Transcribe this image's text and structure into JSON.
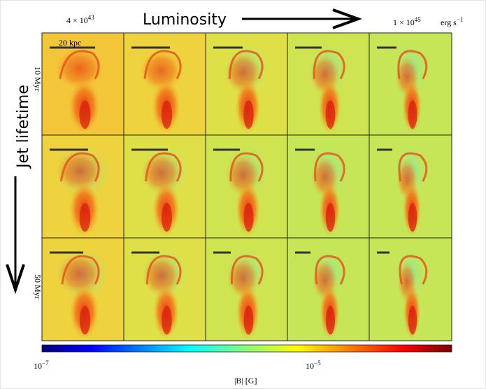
{
  "header": {
    "luminosity_label": "Luminosity",
    "low_luminosity": {
      "base": "4 × 10",
      "exponent": "43"
    },
    "high_luminosity": {
      "base": "1 × 10",
      "exponent": "45"
    },
    "unit": {
      "base": "erg s",
      "exponent": "−1"
    }
  },
  "side": {
    "lifetime_label": "Jet lifetime",
    "top_row": "10 Myr",
    "bottom_row": "50 Myr"
  },
  "scale_bar": "20 kpc",
  "colorbar": {
    "min_label": {
      "base": "10",
      "exponent": "−7"
    },
    "mid_label": {
      "base": "10",
      "exponent": "−5"
    },
    "label": "|B| [G]"
  }
}
